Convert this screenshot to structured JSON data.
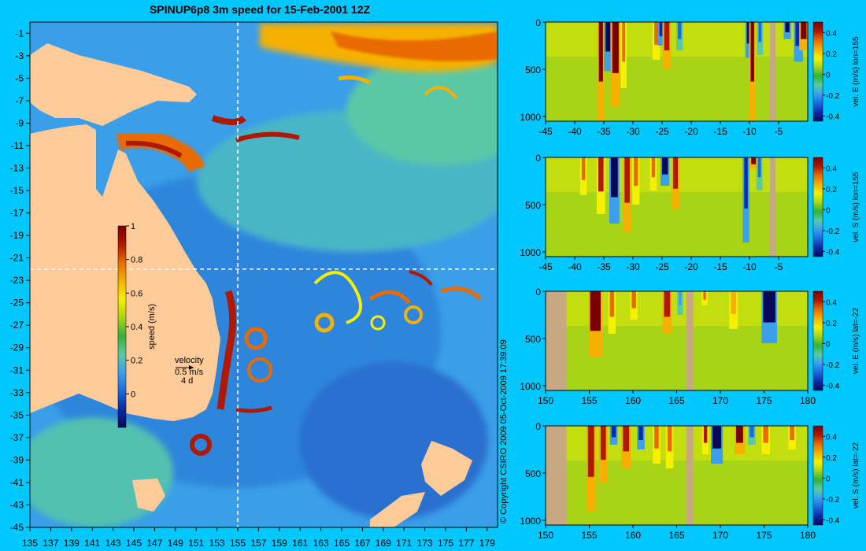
{
  "page": {
    "background": "#00c8ff",
    "land_color": "#ffcc99",
    "section_land_color": "#c8a882",
    "guide_color": "#ffffff",
    "copyright": "© Copyright CSIRO 2009   05-Oct-2009 17:39:09"
  },
  "colormap": [
    "#08085a",
    "#0a2ba8",
    "#1a6ae0",
    "#3aa0ee",
    "#5ac8a6",
    "#33b233",
    "#a8d418",
    "#f5f000",
    "#f5b000",
    "#e86a00",
    "#b01800",
    "#7a0000"
  ],
  "map": {
    "title": "SPINUP6p8 3m speed for 15-Feb-2001 12Z",
    "lon_ticks": [
      "135",
      "137",
      "139",
      "141",
      "143",
      "145",
      "147",
      "149",
      "151",
      "153",
      "155",
      "157",
      "159",
      "161",
      "163",
      "165",
      "167",
      "169",
      "171",
      "173",
      "175",
      "177",
      "179"
    ],
    "lat_ticks": [
      "-1",
      "-3",
      "-5",
      "-7",
      "-9",
      "-11",
      "-13",
      "-15",
      "-17",
      "-19",
      "-21",
      "-23",
      "-25",
      "-27",
      "-29",
      "-31",
      "-33",
      "-35",
      "-37",
      "-39",
      "-41",
      "-43",
      "-45"
    ],
    "lon_range": [
      135,
      180
    ],
    "lat_range": [
      -45,
      0
    ],
    "guide_lon": 155,
    "guide_lat": -22,
    "colorbar": {
      "label": "speed (m/s)",
      "range": [
        -0.2,
        1
      ],
      "ticks": [
        "1",
        "0.8",
        "0.6",
        "0.4",
        "0.2",
        "0"
      ]
    },
    "velocity_key": {
      "title": "velocity",
      "speed": "0.5 m/s",
      "duration": "4 d"
    }
  },
  "chart_data": [
    {
      "type": "heatmap",
      "name": "vel. E (m/s) lon=155",
      "x_ticks": [
        "-45",
        "-40",
        "-35",
        "-30",
        "-25",
        "-20",
        "-15",
        "-10",
        "-5"
      ],
      "x_values": [
        -45,
        -40,
        -35,
        -30,
        -25,
        -20,
        -15,
        -10,
        -5
      ],
      "xlim": [
        -45,
        0
      ],
      "y_ticks": [
        "0",
        "500",
        "1000"
      ],
      "y_values": [
        0,
        500,
        1000
      ],
      "ylim": [
        0,
        1050
      ],
      "colorbar_label": "vel. E (m/s) lon=155",
      "colorbar_ticks": [
        "0.4",
        "0.2",
        "0",
        "-0.2",
        "-0.4"
      ],
      "colorbar_range": [
        -0.45,
        0.5
      ],
      "land": [
        [
          -6.5,
          -5.5
        ]
      ],
      "features": [
        {
          "x": -35.5,
          "w": 0.7,
          "v": 0.5,
          "d": 1050
        },
        {
          "x": -34.3,
          "w": 0.8,
          "v": -0.45,
          "d": 520
        },
        {
          "x": -33,
          "w": 1.1,
          "v": 0.5,
          "d": 900
        },
        {
          "x": -31.6,
          "w": 0.5,
          "v": 0.3,
          "d": 700
        },
        {
          "x": -26,
          "w": 0.7,
          "v": 0.35,
          "d": 400
        },
        {
          "x": -25.2,
          "w": 0.5,
          "v": -0.35,
          "d": 250
        },
        {
          "x": -24.2,
          "w": 0.9,
          "v": 0.45,
          "d": 500
        },
        {
          "x": -22,
          "w": 0.6,
          "v": -0.3,
          "d": 300
        },
        {
          "x": -10.2,
          "w": 0.5,
          "v": -0.45,
          "d": 380
        },
        {
          "x": -9.5,
          "w": 0.6,
          "v": 0.5,
          "d": 1050
        },
        {
          "x": -8.2,
          "w": 0.5,
          "v": -0.3,
          "d": 350
        },
        {
          "x": -3.5,
          "w": 0.7,
          "v": -0.45,
          "d": 180
        },
        {
          "x": -1.6,
          "w": 1.0,
          "v": -0.35,
          "d": 420
        },
        {
          "x": -0.7,
          "w": 1.0,
          "v": 0.5,
          "d": 300
        }
      ]
    },
    {
      "type": "heatmap",
      "name": "vel. S (m/s) lon=155",
      "x_ticks": [
        "-45",
        "-40",
        "-35",
        "-30",
        "-25",
        "-20",
        "-15",
        "-10",
        "-5"
      ],
      "x_values": [
        -45,
        -40,
        -35,
        -30,
        -25,
        -20,
        -15,
        -10,
        -5
      ],
      "xlim": [
        -45,
        0
      ],
      "y_ticks": [
        "0",
        "500",
        "1000"
      ],
      "y_values": [
        0,
        500,
        1000
      ],
      "ylim": [
        0,
        1050
      ],
      "colorbar_label": "vel. S (m/s) lon=155",
      "colorbar_ticks": [
        "0.4",
        "0.2",
        "0",
        "-0.2",
        "-0.4"
      ],
      "colorbar_range": [
        -0.45,
        0.5
      ],
      "land": [
        [
          -6.5,
          -5.5
        ]
      ],
      "features": [
        {
          "x": -38.5,
          "w": 0.6,
          "v": 0.3,
          "d": 400
        },
        {
          "x": -35.5,
          "w": 0.9,
          "v": 0.4,
          "d": 600
        },
        {
          "x": -33.2,
          "w": 1.2,
          "v": -0.45,
          "d": 700
        },
        {
          "x": -31,
          "w": 0.9,
          "v": 0.45,
          "d": 800
        },
        {
          "x": -29.5,
          "w": 0.7,
          "v": 0.3,
          "d": 500
        },
        {
          "x": -26.5,
          "w": 0.6,
          "v": 0.35,
          "d": 350
        },
        {
          "x": -24.5,
          "w": 1.0,
          "v": -0.45,
          "d": 300
        },
        {
          "x": -22.7,
          "w": 0.8,
          "v": 0.45,
          "d": 550
        },
        {
          "x": -10.6,
          "w": 0.6,
          "v": -0.4,
          "d": 900
        },
        {
          "x": -9.3,
          "w": 0.8,
          "v": 0.5,
          "d": 120
        },
        {
          "x": -8.3,
          "w": 0.5,
          "v": -0.3,
          "d": 350
        }
      ]
    },
    {
      "type": "heatmap",
      "name": "vel. E (m/s) lat=-22",
      "x_ticks": [
        "150",
        "155",
        "160",
        "165",
        "170",
        "175",
        "180"
      ],
      "x_values": [
        150,
        155,
        160,
        165,
        170,
        175,
        180
      ],
      "xlim": [
        150,
        180
      ],
      "y_ticks": [
        "0",
        "500",
        "1000"
      ],
      "y_values": [
        0,
        500,
        1000
      ],
      "ylim": [
        0,
        1050
      ],
      "colorbar_label": "vel. E (m/s) lat=-22",
      "colorbar_ticks": [
        "0.4",
        "0.2",
        "0",
        "-0.2",
        "-0.4"
      ],
      "colorbar_range": [
        -0.45,
        0.5
      ],
      "land": [
        [
          150,
          152.4
        ],
        [
          166.1,
          166.9
        ]
      ],
      "features": [
        {
          "x": 155.7,
          "w": 1.2,
          "v": 0.5,
          "d": 700
        },
        {
          "x": 157.6,
          "w": 0.5,
          "v": 0.35,
          "d": 450
        },
        {
          "x": 160.1,
          "w": 0.5,
          "v": 0.3,
          "d": 300
        },
        {
          "x": 163.9,
          "w": 0.7,
          "v": 0.45,
          "d": 450
        },
        {
          "x": 165.4,
          "w": 0.3,
          "v": -0.2,
          "d": 250
        },
        {
          "x": 168.2,
          "w": 0.3,
          "v": 0.3,
          "d": 150
        },
        {
          "x": 171.5,
          "w": 0.6,
          "v": 0.25,
          "d": 400
        },
        {
          "x": 175.6,
          "w": 1.4,
          "v": -0.45,
          "d": 550
        }
      ]
    },
    {
      "type": "heatmap",
      "name": "vel. S (m/s) lat=-22",
      "x_ticks": [
        "150",
        "155",
        "160",
        "165",
        "170",
        "175",
        "180"
      ],
      "x_values": [
        150,
        155,
        160,
        165,
        170,
        175,
        180
      ],
      "xlim": [
        150,
        180
      ],
      "y_ticks": [
        "0",
        "500",
        "1000"
      ],
      "y_values": [
        0,
        500,
        1000
      ],
      "ylim": [
        0,
        1050
      ],
      "colorbar_label": "vel. S (m/s) lat=-22",
      "colorbar_ticks": [
        "0.4",
        "0.2",
        "0",
        "-0.2",
        "-0.4"
      ],
      "colorbar_range": [
        -0.45,
        0.5
      ],
      "land": [
        [
          150,
          152.4
        ],
        [
          166.1,
          166.9
        ]
      ],
      "features": [
        {
          "x": 155.2,
          "w": 0.7,
          "v": 0.45,
          "d": 900
        },
        {
          "x": 156.6,
          "w": 0.6,
          "v": 0.45,
          "d": 600
        },
        {
          "x": 157.8,
          "w": 0.5,
          "v": -0.4,
          "d": 200
        },
        {
          "x": 159.2,
          "w": 0.7,
          "v": 0.45,
          "d": 450
        },
        {
          "x": 160.9,
          "w": 0.5,
          "v": -0.35,
          "d": 250
        },
        {
          "x": 162.7,
          "w": 0.5,
          "v": 0.35,
          "d": 400
        },
        {
          "x": 164.2,
          "w": 0.5,
          "v": 0.35,
          "d": 450
        },
        {
          "x": 168.3,
          "w": 0.4,
          "v": 0.4,
          "d": 300
        },
        {
          "x": 169.6,
          "w": 1.0,
          "v": -0.45,
          "d": 400
        },
        {
          "x": 172.2,
          "w": 0.8,
          "v": 0.5,
          "d": 300
        },
        {
          "x": 173.6,
          "w": 0.5,
          "v": -0.3,
          "d": 200
        },
        {
          "x": 175.2,
          "w": 0.6,
          "v": 0.35,
          "d": 300
        },
        {
          "x": 178.2,
          "w": 0.5,
          "v": 0.35,
          "d": 250
        }
      ]
    }
  ]
}
